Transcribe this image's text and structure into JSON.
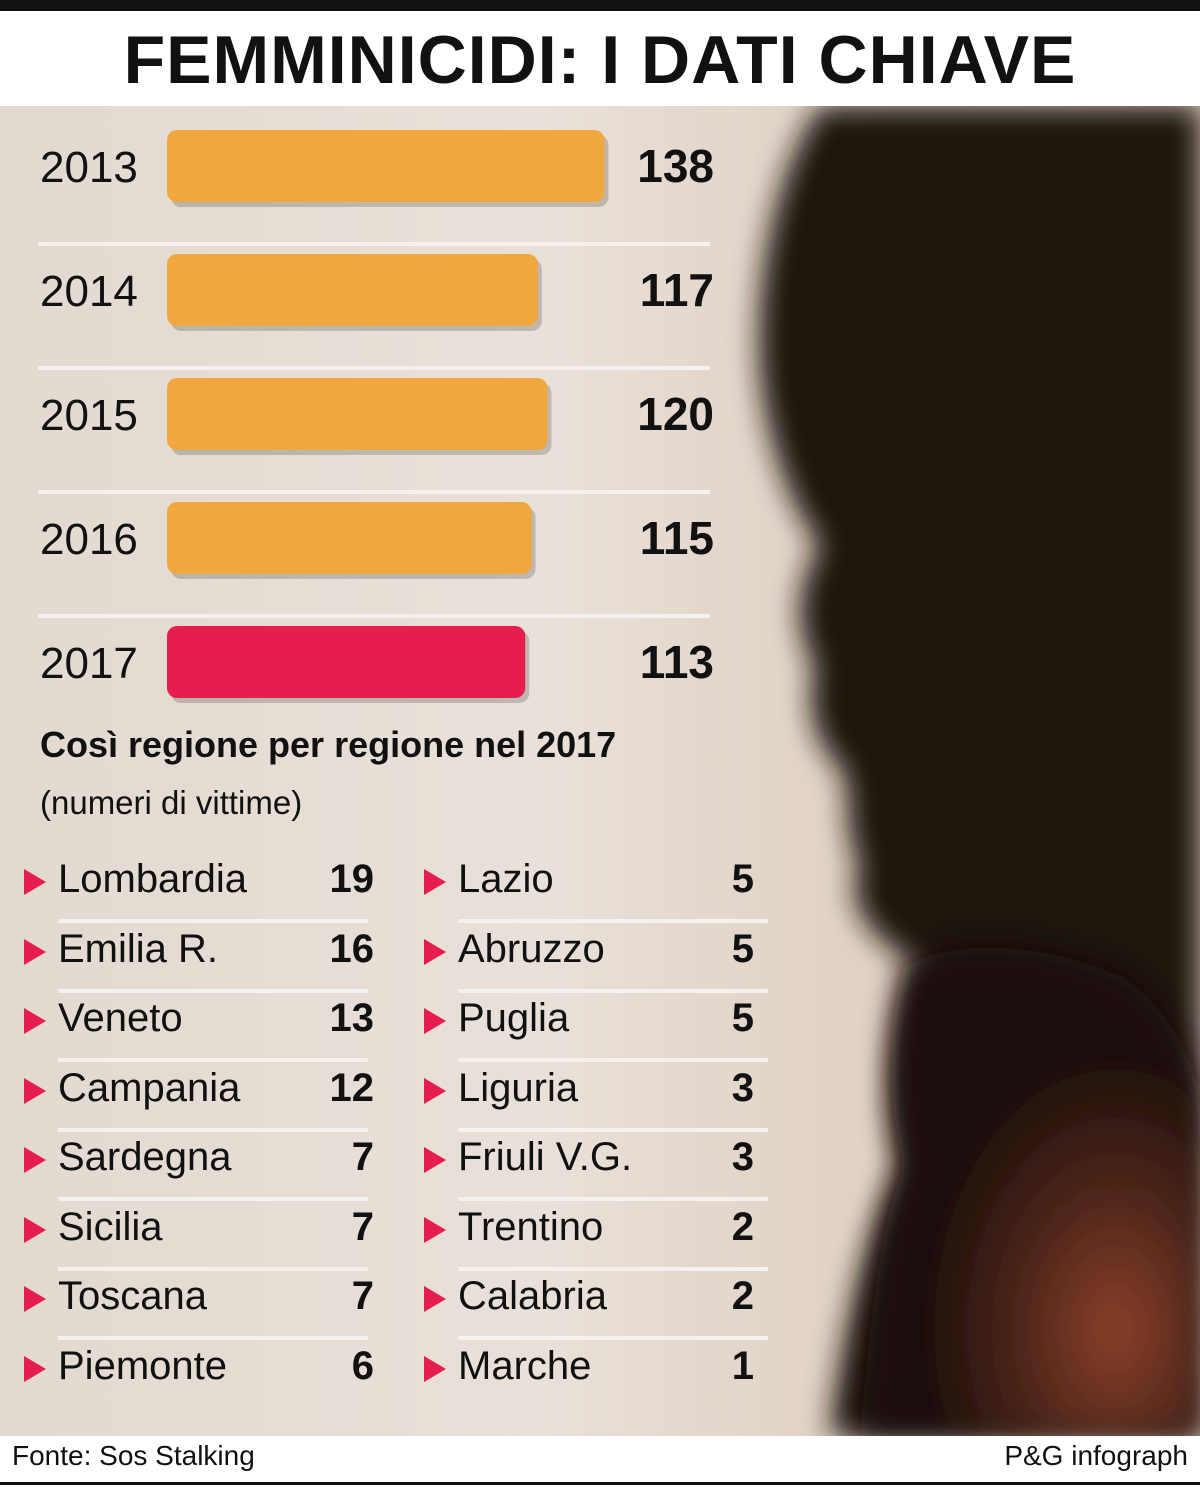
{
  "title": "FEMMINICIDI: I DATI CHIAVE",
  "chart_data": {
    "type": "bar",
    "orientation": "horizontal",
    "categories": [
      "2013",
      "2014",
      "2015",
      "2016",
      "2017"
    ],
    "values": [
      138,
      117,
      120,
      115,
      113
    ],
    "colors": [
      "#f0a83e",
      "#f0a83e",
      "#f0a83e",
      "#f0a83e",
      "#e61e4d"
    ],
    "grid": false
  },
  "regions_section": {
    "heading": "Così regione per regione nel 2017",
    "subheading": "(numeri di vittime)",
    "columns": [
      [
        {
          "name": "Lombardia",
          "value": "19"
        },
        {
          "name": "Emilia R.",
          "value": "16"
        },
        {
          "name": "Veneto",
          "value": "13"
        },
        {
          "name": "Campania",
          "value": "12"
        },
        {
          "name": "Sardegna",
          "value": "7"
        },
        {
          "name": "Sicilia",
          "value": "7"
        },
        {
          "name": "Toscana",
          "value": "7"
        },
        {
          "name": "Piemonte",
          "value": "6"
        }
      ],
      [
        {
          "name": "Lazio",
          "value": "5"
        },
        {
          "name": "Abruzzo",
          "value": "5"
        },
        {
          "name": "Puglia",
          "value": "5"
        },
        {
          "name": "Liguria",
          "value": "3"
        },
        {
          "name": "Friuli V.G.",
          "value": "3"
        },
        {
          "name": "Trentino",
          "value": "2"
        },
        {
          "name": "Calabria",
          "value": "2"
        },
        {
          "name": "Marche",
          "value": "1"
        }
      ]
    ],
    "marker_color": "#e61e4d"
  },
  "footer": {
    "source": "Fonte: Sos Stalking",
    "credit": "P&G infograph"
  }
}
